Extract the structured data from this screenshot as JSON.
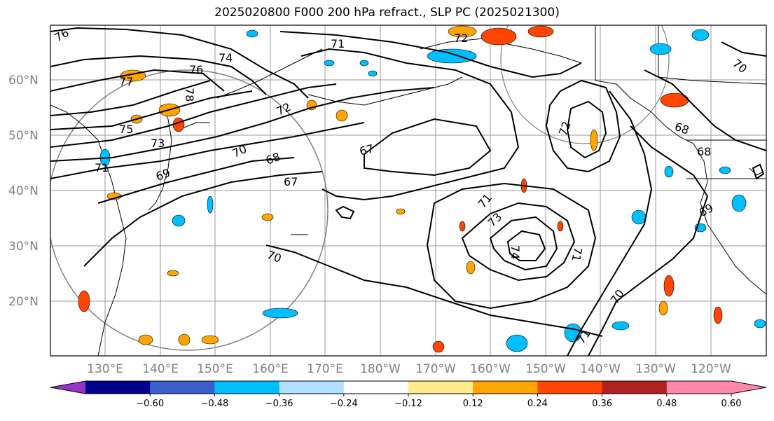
{
  "title": "2025020800 F000 200 hPa refract., SLP PC (2025021300)",
  "map": {
    "lat_labels": [
      "60°N",
      "50°N",
      "40°N",
      "30°N",
      "20°N"
    ],
    "lon_labels": [
      "130°E",
      "140°E",
      "150°E",
      "160°E",
      "170°E",
      "180°W",
      "170°W",
      "160°W",
      "150°W",
      "140°W",
      "130°W",
      "120°W"
    ],
    "contour_labels": [
      "76",
      "71",
      "72",
      "70",
      "74",
      "76",
      "77",
      "78",
      "72",
      "75",
      "73",
      "70",
      "68",
      "67",
      "71",
      "69",
      "67",
      "72",
      "68",
      "68",
      "69",
      "71",
      "73",
      "74",
      "71",
      "70",
      "71",
      "70"
    ]
  },
  "colorbar": {
    "ticks": [
      "−0.60",
      "−0.48",
      "−0.36",
      "−0.24",
      "−0.12",
      "0.12",
      "0.24",
      "0.36",
      "0.48",
      "0.60"
    ],
    "colors": [
      "#9932cc",
      "#00008b",
      "#3a5fcd",
      "#00bfff",
      "#b0e2ff",
      "#ffffff",
      "#ffec8b",
      "#ffa500",
      "#ff4500",
      "#b22222",
      "#ff88aa",
      "#ff88aa"
    ],
    "extend": "both"
  }
}
